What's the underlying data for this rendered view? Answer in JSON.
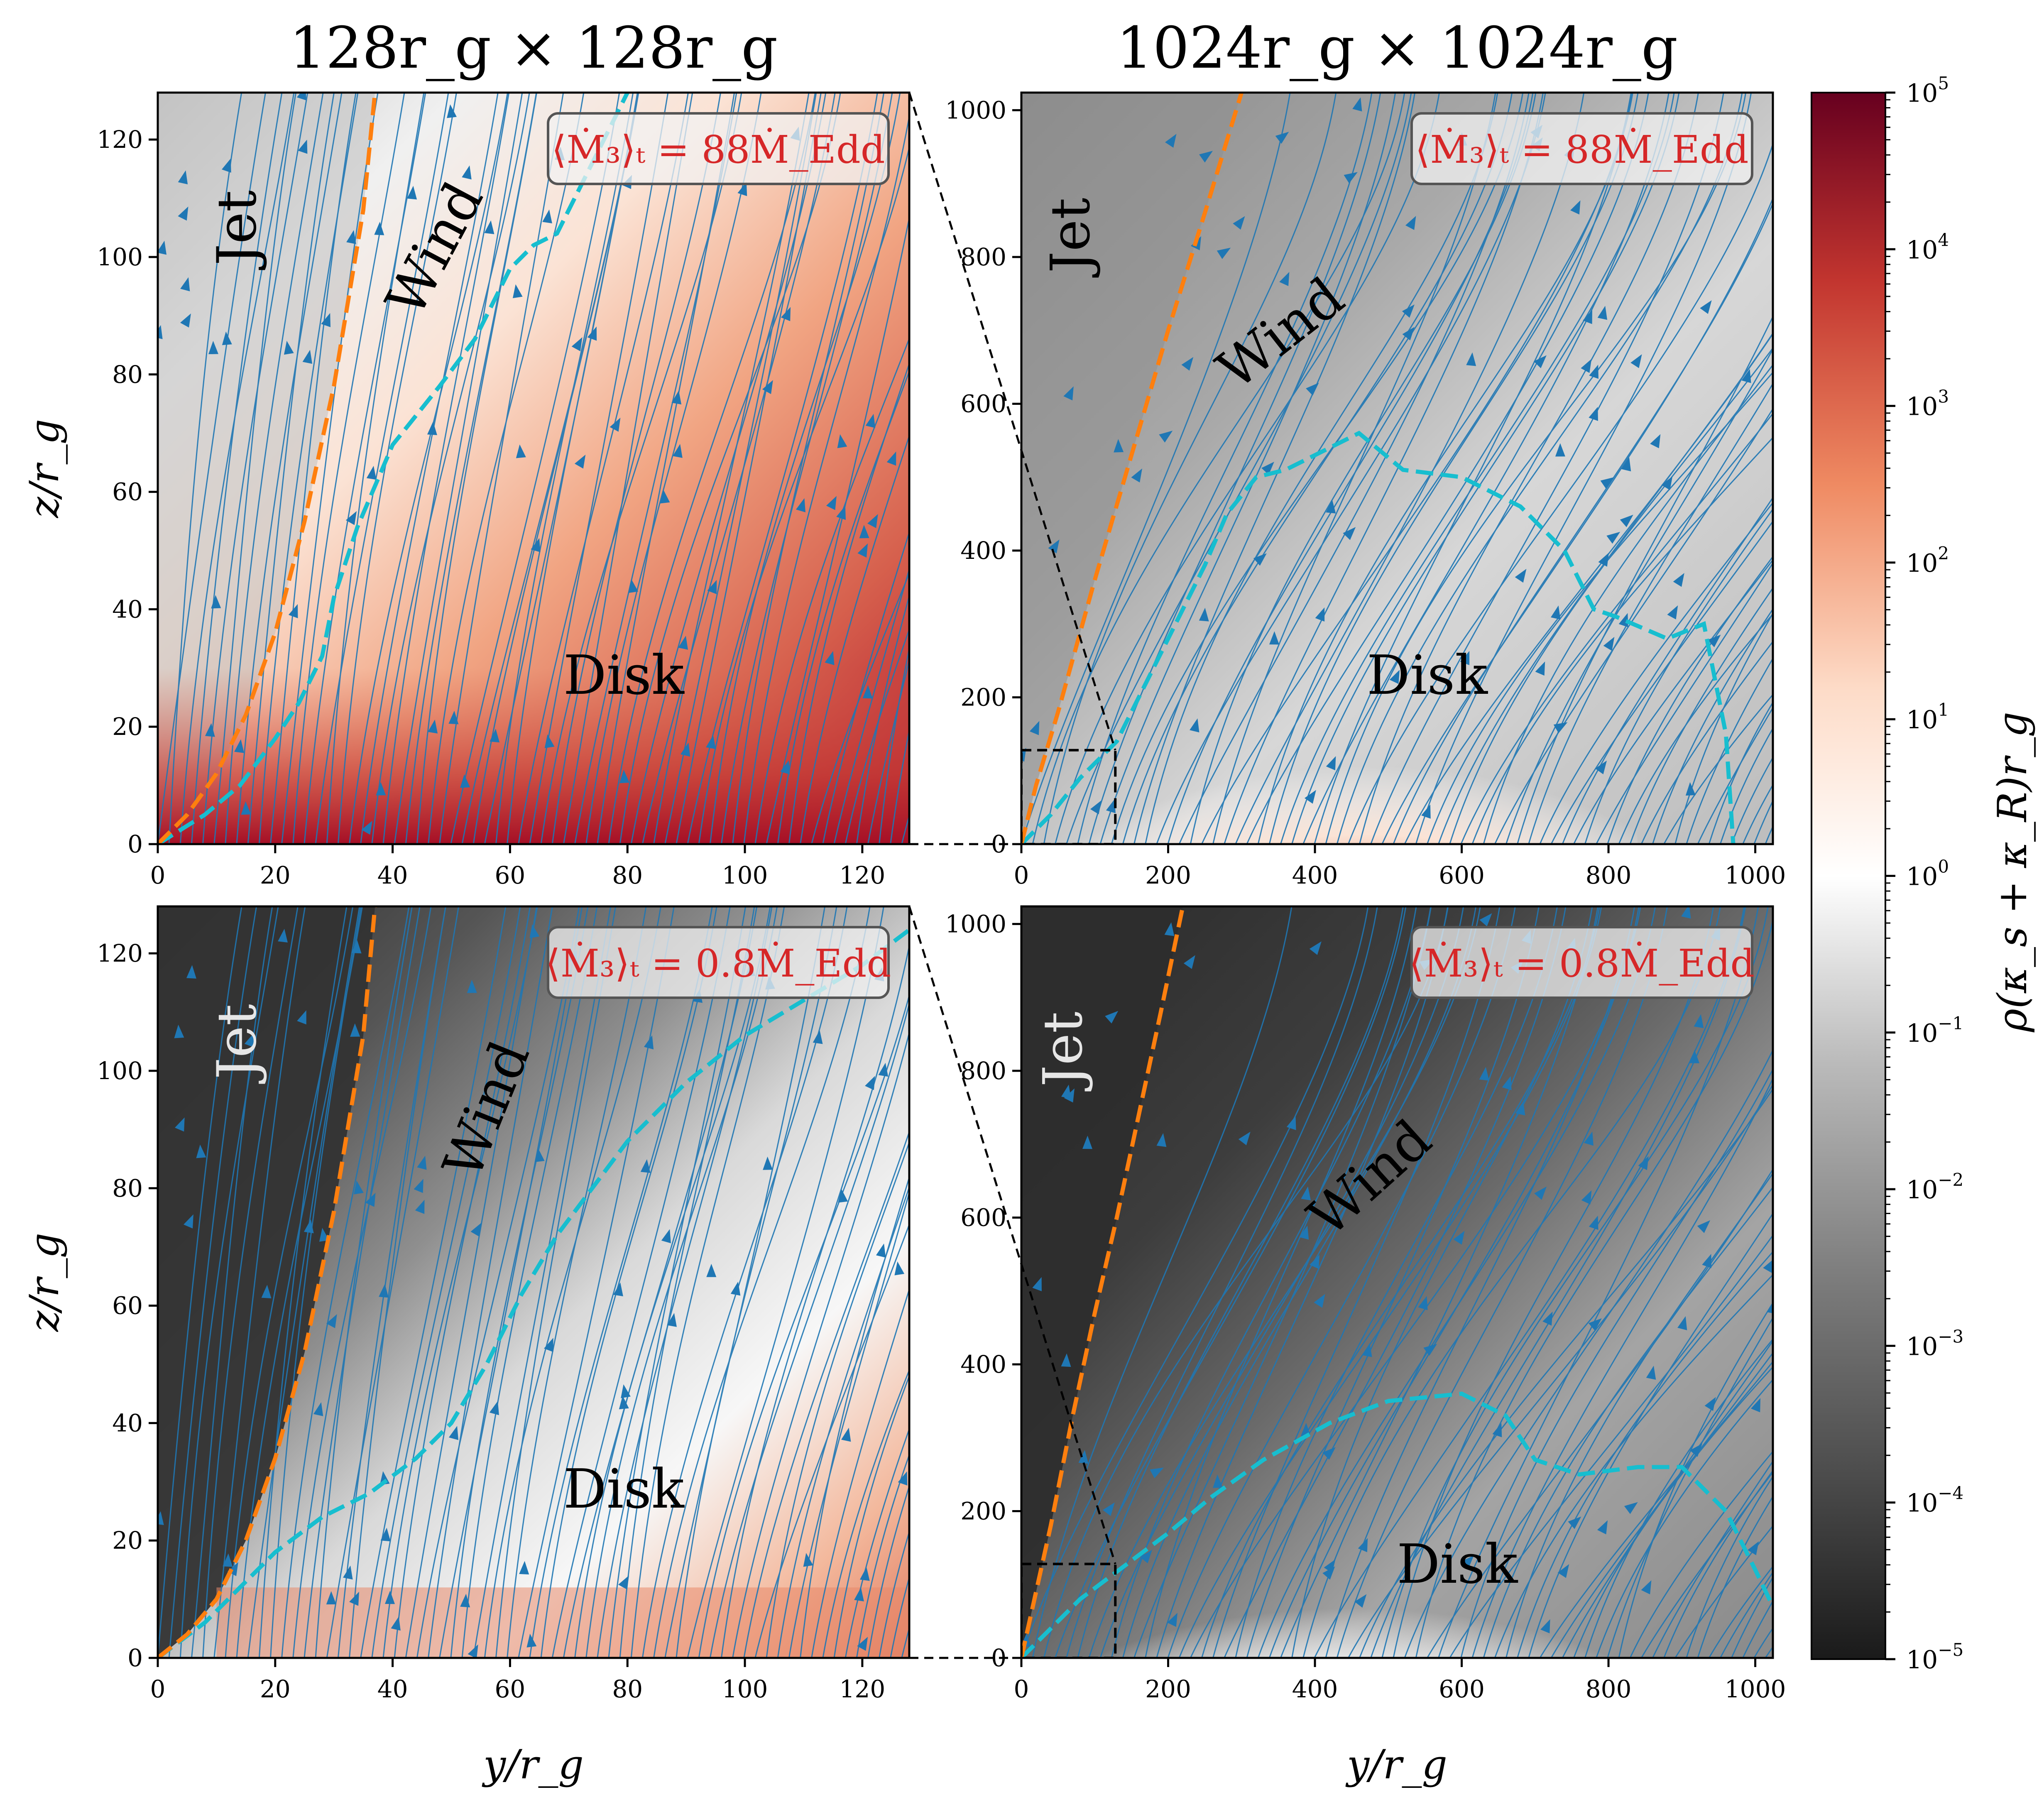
{
  "figure": {
    "colorbar": {
      "label": "ρ(κ_s + κ_R)r_g",
      "scale": "log",
      "colormap": "RdGy_r",
      "range": [
        1e-05,
        100000.0
      ],
      "ticks": [
        {
          "value": -5,
          "label": "10",
          "exp": "−5"
        },
        {
          "value": -4,
          "label": "10",
          "exp": "−4"
        },
        {
          "value": -3,
          "label": "10",
          "exp": "−3"
        },
        {
          "value": -2,
          "label": "10",
          "exp": "−2"
        },
        {
          "value": -1,
          "label": "10",
          "exp": "−1"
        },
        {
          "value": 0,
          "label": "10",
          "exp": "0"
        },
        {
          "value": 1,
          "label": "10",
          "exp": "1"
        },
        {
          "value": 2,
          "label": "10",
          "exp": "2"
        },
        {
          "value": 3,
          "label": "10",
          "exp": "3"
        },
        {
          "value": 4,
          "label": "10",
          "exp": "4"
        },
        {
          "value": 5,
          "label": "10",
          "exp": "5"
        }
      ]
    },
    "colors": {
      "streamline": "#1f77b4",
      "jet_boundary": "#ff7f0e",
      "photosphere": "#17becf",
      "annotation_text": "#d62728",
      "jet_bg_high": "#8f8f8f",
      "jet_bg_low": "#333333",
      "disk_red": "#b2182b"
    }
  },
  "chart_data": [
    {
      "type": "heatmap",
      "panel": "top-left",
      "title": "128r_g × 128r_g",
      "xlabel": "",
      "ylabel": "z/r_g",
      "xlim": [
        0,
        128
      ],
      "ylim": [
        0,
        128
      ],
      "xticks": [
        0,
        20,
        40,
        60,
        80,
        100,
        120
      ],
      "yticks": [
        0,
        20,
        40,
        60,
        80,
        100,
        120
      ],
      "annotation": "⟨Ṁ₃⟩ₜ = 88Ṁ_Edd",
      "region_labels": [
        "Jet",
        "Wind",
        "Disk"
      ],
      "jet_boundary": {
        "x": [
          0,
          5,
          10,
          15,
          20,
          25,
          30,
          35,
          37
        ],
        "y": [
          0,
          5,
          12,
          22,
          36,
          55,
          78,
          108,
          128
        ]
      },
      "photosphere": {
        "x": [
          0,
          8,
          14,
          20,
          24,
          28,
          30,
          34,
          40,
          48,
          54,
          58,
          60,
          64,
          68,
          72,
          76,
          80
        ],
        "y": [
          0,
          5,
          10,
          18,
          24,
          32,
          42,
          54,
          68,
          78,
          86,
          94,
          98,
          102,
          104,
          112,
          120,
          128
        ]
      }
    },
    {
      "type": "heatmap",
      "panel": "top-right",
      "title": "1024r_g × 1024r_g",
      "xlabel": "",
      "ylabel": "",
      "xlim": [
        0,
        1024
      ],
      "ylim": [
        0,
        1024
      ],
      "xticks": [
        0,
        200,
        400,
        600,
        800,
        1000
      ],
      "yticks": [
        0,
        200,
        400,
        600,
        800,
        1000
      ],
      "annotation": "⟨Ṁ₃⟩ₜ = 88Ṁ_Edd",
      "region_labels": [
        "Jet",
        "Wind",
        "Disk"
      ],
      "jet_boundary": {
        "x": [
          0,
          20,
          50,
          100,
          150,
          200,
          250,
          300
        ],
        "y": [
          0,
          80,
          180,
          360,
          530,
          700,
          860,
          1024
        ]
      },
      "photosphere": {
        "x": [
          0,
          40,
          80,
          130,
          170,
          210,
          250,
          280,
          320,
          360,
          420,
          460,
          520,
          600,
          680,
          740,
          780,
          810,
          880,
          930,
          960,
          970
        ],
        "y": [
          0,
          40,
          90,
          140,
          220,
          300,
          380,
          450,
          500,
          510,
          540,
          560,
          510,
          500,
          460,
          400,
          320,
          310,
          280,
          300,
          150,
          0
        ]
      },
      "zoom_box": {
        "x": [
          0,
          128
        ],
        "y": [
          0,
          128
        ]
      }
    },
    {
      "type": "heatmap",
      "panel": "bottom-left",
      "title": "",
      "xlabel": "y/r_g",
      "ylabel": "z/r_g",
      "xlim": [
        0,
        128
      ],
      "ylim": [
        0,
        128
      ],
      "xticks": [
        0,
        20,
        40,
        60,
        80,
        100,
        120
      ],
      "yticks": [
        0,
        20,
        40,
        60,
        80,
        100,
        120
      ],
      "annotation": "⟨Ṁ₃⟩ₜ = 0.8Ṁ_Edd",
      "region_labels": [
        "Jet",
        "Wind",
        "Disk"
      ],
      "jet_boundary": {
        "x": [
          0,
          5,
          10,
          15,
          20,
          25,
          30,
          35,
          37
        ],
        "y": [
          0,
          4,
          10,
          20,
          34,
          52,
          76,
          106,
          128
        ]
      },
      "photosphere": {
        "x": [
          0,
          8,
          14,
          20,
          28,
          36,
          44,
          50,
          56,
          62,
          68,
          74,
          80,
          90,
          100,
          110,
          120,
          128
        ],
        "y": [
          0,
          6,
          12,
          18,
          24,
          28,
          34,
          40,
          50,
          62,
          72,
          80,
          88,
          98,
          106,
          112,
          118,
          124
        ]
      }
    },
    {
      "type": "heatmap",
      "panel": "bottom-right",
      "title": "",
      "xlabel": "y/r_g",
      "ylabel": "",
      "xlim": [
        0,
        1024
      ],
      "ylim": [
        0,
        1024
      ],
      "xticks": [
        0,
        200,
        400,
        600,
        800,
        1000
      ],
      "yticks": [
        0,
        200,
        400,
        600,
        800,
        1000
      ],
      "annotation": "⟨Ṁ₃⟩ₜ = 0.8Ṁ_Edd",
      "region_labels": [
        "Jet",
        "Wind",
        "Disk"
      ],
      "jet_boundary": {
        "x": [
          0,
          20,
          40,
          70,
          100,
          130,
          160,
          190,
          220
        ],
        "y": [
          0,
          90,
          180,
          330,
          470,
          600,
          740,
          880,
          1024
        ]
      },
      "photosphere": {
        "x": [
          0,
          40,
          80,
          120,
          160,
          200,
          260,
          330,
          420,
          500,
          600,
          660,
          700,
          760,
          840,
          900,
          960,
          1000,
          1024
        ],
        "y": [
          0,
          40,
          80,
          110,
          140,
          170,
          220,
          270,
          320,
          350,
          360,
          330,
          270,
          250,
          260,
          260,
          200,
          120,
          70
        ]
      },
      "zoom_box": {
        "x": [
          0,
          128
        ],
        "y": [
          0,
          128
        ]
      }
    }
  ]
}
